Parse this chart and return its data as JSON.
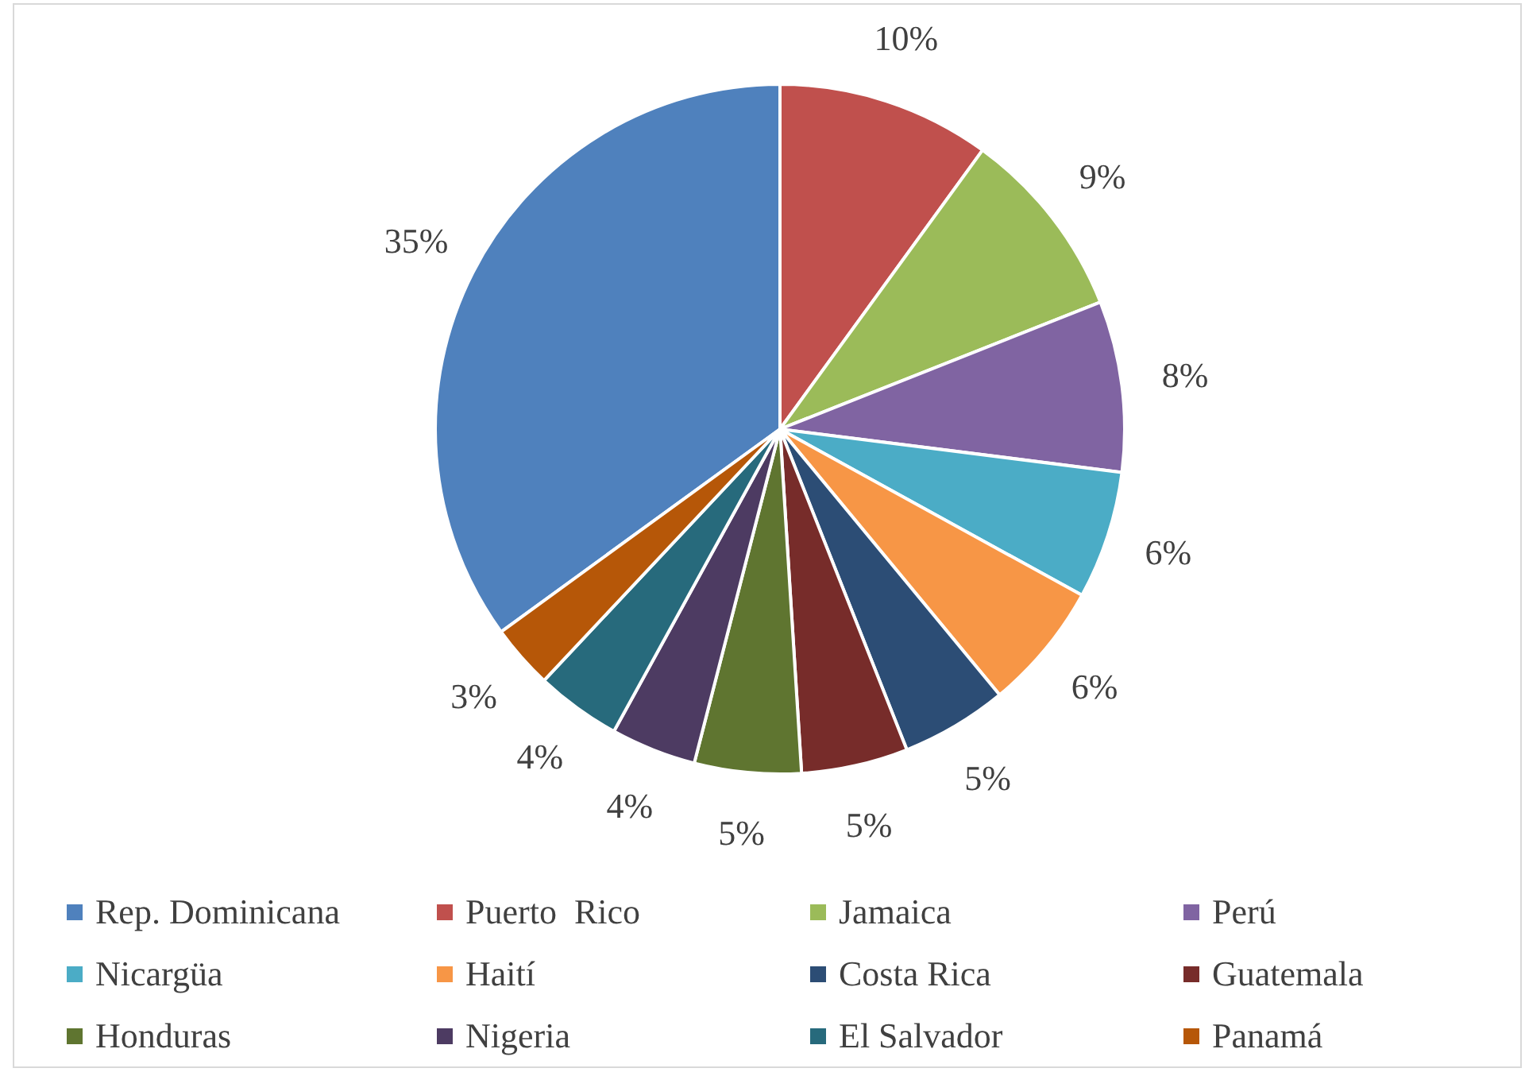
{
  "chart_data": {
    "type": "pie",
    "categories": [
      "Rep. Dominicana",
      "Puerto  Rico",
      "Jamaica",
      "Perú",
      "Nicargüa",
      "Haití",
      "Costa Rica",
      "Guatemala",
      "Honduras",
      "Nigeria",
      "El Salvador",
      "Panamá"
    ],
    "values": [
      35,
      10,
      9,
      8,
      6,
      6,
      5,
      5,
      5,
      4,
      4,
      3
    ],
    "value_labels": [
      "35%",
      "10%",
      "9%",
      "8%",
      "6%",
      "6%",
      "5%",
      "5%",
      "5%",
      "4%",
      "4%",
      "3%"
    ],
    "colors": [
      "#4f81bd",
      "#c0504d",
      "#9bbb59",
      "#8064a2",
      "#4bacc6",
      "#f79646",
      "#2c4d75",
      "#772c2a",
      "#5f7530",
      "#4d3b62",
      "#276a7c",
      "#b65708"
    ],
    "legend": "bottom"
  }
}
